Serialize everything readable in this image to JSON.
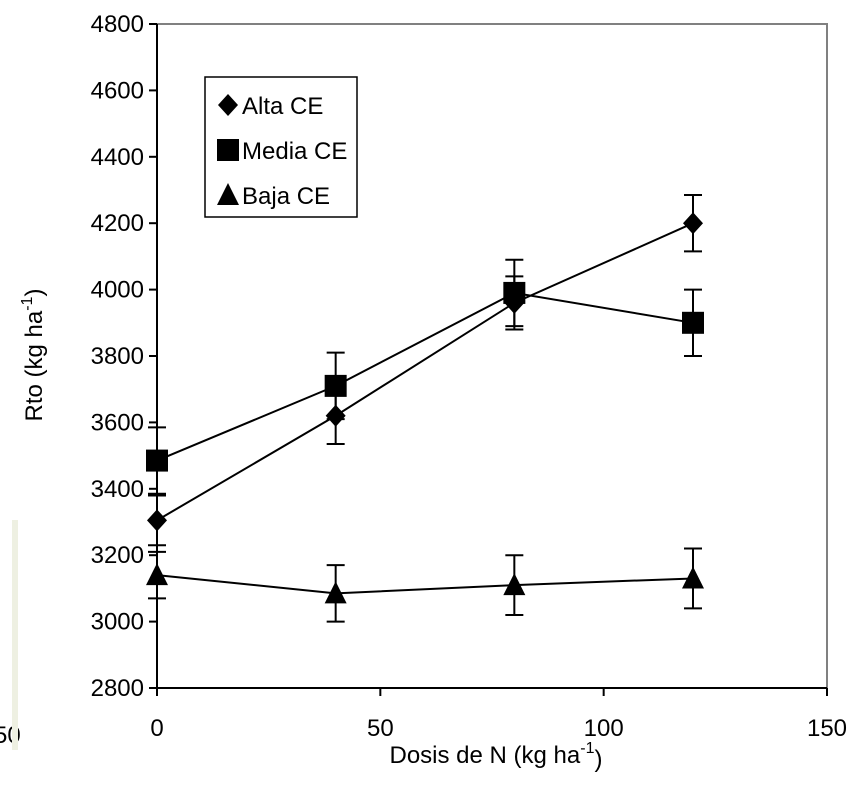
{
  "chart_data": {
    "type": "line",
    "title": "",
    "xlabel": {
      "main": "Dosis de N (kg ha",
      "sup": "-1",
      "end": ")"
    },
    "ylabel": {
      "main": "Rto (kg ha",
      "sup": "-1",
      "end": ")"
    },
    "xlim": [
      0,
      150
    ],
    "ylim": [
      2800,
      4800
    ],
    "x_ticks": [
      "0",
      "50",
      "100",
      "150"
    ],
    "y_ticks": [
      "2800",
      "3000",
      "3200",
      "3400",
      "3600",
      "3800",
      "4000",
      "4200",
      "4400",
      "4600",
      "4800"
    ],
    "grid": false,
    "legend_position": "top-left",
    "stray_label": "50",
    "x": [
      0,
      40,
      80,
      120
    ],
    "series": [
      {
        "name": "Alta CE",
        "marker": "diamond",
        "values": [
          3305,
          3620,
          3960,
          4200
        ],
        "errors": [
          75,
          85,
          80,
          85
        ]
      },
      {
        "name": "Media CE",
        "marker": "square",
        "values": [
          3485,
          3710,
          3990,
          3900
        ],
        "errors": [
          100,
          100,
          100,
          100
        ]
      },
      {
        "name": "Baja CE",
        "marker": "triangle",
        "values": [
          3140,
          3085,
          3110,
          3130
        ],
        "errors": [
          70,
          85,
          90,
          90
        ]
      }
    ]
  }
}
